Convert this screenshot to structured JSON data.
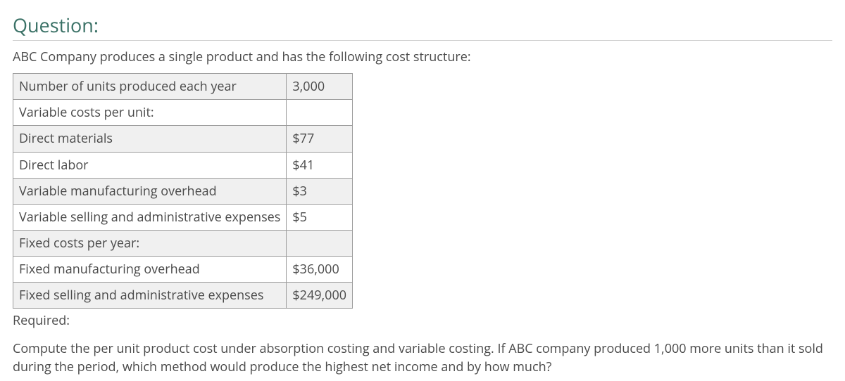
{
  "heading": "Question:",
  "lead": "ABC Company produces a single product and has the following cost structure:",
  "table": {
    "rows": [
      {
        "label": "Number of units produced each year",
        "value": "3,000",
        "shaded": true
      },
      {
        "label": "Variable costs per unit:",
        "value": "",
        "shaded": false
      },
      {
        "label": "Direct materials",
        "value": "$77",
        "shaded": true
      },
      {
        "label": "Direct labor",
        "value": "$41",
        "shaded": false
      },
      {
        "label": "Variable manufacturing overhead",
        "value": "$3",
        "shaded": true
      },
      {
        "label": "Variable selling and administrative expenses",
        "value": "$5",
        "shaded": false
      },
      {
        "label": "Fixed costs per year:",
        "value": "",
        "shaded": true
      },
      {
        "label": "Fixed manufacturing overhead",
        "value": "$36,000",
        "shaded": false
      },
      {
        "label": "Fixed selling and administrative expenses",
        "value": "$249,000",
        "shaded": true
      }
    ]
  },
  "required_label": "Required:",
  "required_text": "Compute the per unit product cost under absorption costing and variable costing. If ABC company produced 1,000 more units than it sold during the period, which method would produce the highest net income and by how much?",
  "colors": {
    "heading": "#3a7166",
    "text": "#4a4a4a",
    "border": "#9c9c9c",
    "shaded_bg": "#f0f0f0",
    "rule": "#cfcfcf",
    "page_bg": "#ffffff"
  }
}
